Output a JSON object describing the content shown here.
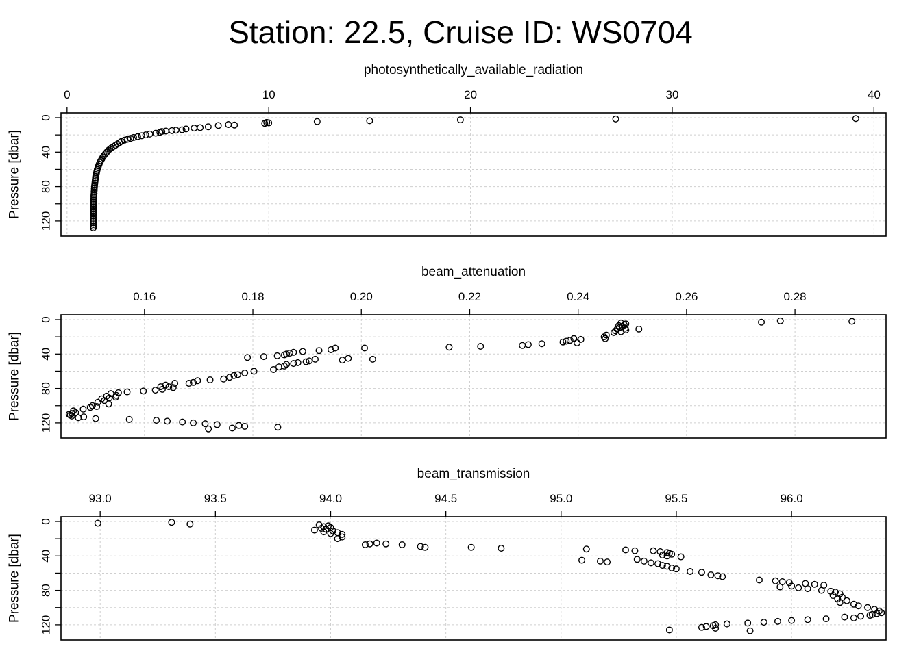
{
  "title": "Station: 22.5, Cruise ID: WS0704",
  "chart_data": [
    {
      "type": "scatter",
      "title": "",
      "xlabel": "photosynthetically_available_radiation",
      "ylabel": "Pressure [dbar]",
      "xlim": [
        -0.3,
        40.6
      ],
      "ylim": [
        0,
        132
      ],
      "y_reversed": true,
      "x_ticks": [
        0,
        10,
        20,
        30,
        40
      ],
      "x_tick_labels": [
        "0",
        "10",
        "20",
        "30",
        "40"
      ],
      "y_ticks": [
        0,
        40,
        80,
        120
      ],
      "y_tick_labels": [
        "0",
        "40",
        "80",
        "120"
      ],
      "grid": true,
      "points": [
        [
          39.1,
          1
        ],
        [
          27.2,
          1.5
        ],
        [
          19.5,
          2.5
        ],
        [
          15.0,
          3.5
        ],
        [
          12.4,
          4.5
        ],
        [
          10.0,
          6
        ],
        [
          9.9,
          5.5
        ],
        [
          9.8,
          6.5
        ],
        [
          8.3,
          8.5
        ],
        [
          8.0,
          8
        ],
        [
          7.5,
          9
        ],
        [
          7.0,
          10.5
        ],
        [
          6.6,
          11.5
        ],
        [
          6.3,
          12
        ],
        [
          5.9,
          13
        ],
        [
          5.7,
          14
        ],
        [
          5.4,
          14.5
        ],
        [
          5.2,
          15
        ],
        [
          4.9,
          15.5
        ],
        [
          4.7,
          16
        ],
        [
          4.6,
          17
        ],
        [
          4.4,
          18
        ],
        [
          4.1,
          19
        ],
        [
          3.9,
          20
        ],
        [
          3.7,
          21
        ],
        [
          3.5,
          22
        ],
        [
          3.3,
          23
        ],
        [
          3.15,
          24
        ],
        [
          3.0,
          25
        ],
        [
          2.85,
          26
        ],
        [
          2.7,
          27.5
        ],
        [
          2.6,
          29
        ],
        [
          2.5,
          30.5
        ],
        [
          2.4,
          32
        ],
        [
          2.3,
          33.5
        ],
        [
          2.2,
          35
        ],
        [
          2.12,
          36.5
        ],
        [
          2.04,
          38
        ],
        [
          1.97,
          40
        ],
        [
          1.9,
          42
        ],
        [
          1.83,
          44
        ],
        [
          1.77,
          46
        ],
        [
          1.72,
          48
        ],
        [
          1.67,
          50
        ],
        [
          1.63,
          52
        ],
        [
          1.59,
          54
        ],
        [
          1.56,
          56
        ],
        [
          1.53,
          58
        ],
        [
          1.5,
          60
        ],
        [
          1.48,
          62
        ],
        [
          1.46,
          64
        ],
        [
          1.44,
          66
        ],
        [
          1.42,
          68
        ],
        [
          1.41,
          70
        ],
        [
          1.4,
          72
        ],
        [
          1.39,
          74
        ],
        [
          1.38,
          76
        ],
        [
          1.37,
          78
        ],
        [
          1.36,
          80
        ],
        [
          1.35,
          82
        ],
        [
          1.35,
          84
        ],
        [
          1.34,
          86
        ],
        [
          1.34,
          88
        ],
        [
          1.33,
          90
        ],
        [
          1.33,
          92
        ],
        [
          1.33,
          94
        ],
        [
          1.32,
          96
        ],
        [
          1.32,
          98
        ],
        [
          1.32,
          100
        ],
        [
          1.32,
          102
        ],
        [
          1.31,
          104
        ],
        [
          1.31,
          106
        ],
        [
          1.31,
          108
        ],
        [
          1.31,
          110
        ],
        [
          1.31,
          112
        ],
        [
          1.3,
          114
        ],
        [
          1.3,
          116
        ],
        [
          1.3,
          118
        ],
        [
          1.3,
          120
        ],
        [
          1.3,
          122
        ],
        [
          1.3,
          124
        ],
        [
          1.3,
          126
        ],
        [
          1.3,
          128
        ]
      ]
    },
    {
      "type": "scatter",
      "title": "",
      "xlabel": "beam_attenuation",
      "ylabel": "Pressure [dbar]",
      "xlim": [
        0.1446,
        0.2968
      ],
      "ylim": [
        0,
        132
      ],
      "y_reversed": true,
      "x_ticks": [
        0.16,
        0.18,
        0.2,
        0.22,
        0.24,
        0.26,
        0.28
      ],
      "x_tick_labels": [
        "0.16",
        "0.18",
        "0.20",
        "0.22",
        "0.24",
        "0.26",
        "0.28"
      ],
      "y_ticks": [
        0,
        40,
        80,
        120
      ],
      "y_tick_labels": [
        "0",
        "40",
        "80",
        "120"
      ],
      "grid": true,
      "points": [
        [
          0.2905,
          2
        ],
        [
          0.2773,
          1.5
        ],
        [
          0.2738,
          3
        ],
        [
          0.2488,
          5
        ],
        [
          0.2485,
          6
        ],
        [
          0.2479,
          4
        ],
        [
          0.2475,
          7
        ],
        [
          0.2482,
          8
        ],
        [
          0.2477,
          9
        ],
        [
          0.2487,
          10
        ],
        [
          0.2472,
          11
        ],
        [
          0.2488,
          12
        ],
        [
          0.2469,
          13
        ],
        [
          0.2479,
          14
        ],
        [
          0.2466,
          15
        ],
        [
          0.2512,
          11
        ],
        [
          0.2452,
          18
        ],
        [
          0.2448,
          20
        ],
        [
          0.245,
          22
        ],
        [
          0.2405,
          23
        ],
        [
          0.2392,
          22
        ],
        [
          0.2385,
          24
        ],
        [
          0.2378,
          25
        ],
        [
          0.2398,
          27
        ],
        [
          0.2372,
          26
        ],
        [
          0.2333,
          28
        ],
        [
          0.2308,
          29
        ],
        [
          0.2297,
          30
        ],
        [
          0.222,
          31
        ],
        [
          0.2162,
          32
        ],
        [
          0.2006,
          33
        ],
        [
          0.1952,
          33
        ],
        [
          0.1944,
          35
        ],
        [
          0.1922,
          36
        ],
        [
          0.1892,
          37
        ],
        [
          0.1875,
          38
        ],
        [
          0.1868,
          39
        ],
        [
          0.1862,
          40
        ],
        [
          0.1858,
          41
        ],
        [
          0.1845,
          42
        ],
        [
          0.182,
          43
        ],
        [
          0.179,
          44
        ],
        [
          0.2021,
          46
        ],
        [
          0.1976,
          45
        ],
        [
          0.1965,
          47
        ],
        [
          0.1915,
          46
        ],
        [
          0.1904,
          48
        ],
        [
          0.1898,
          49
        ],
        [
          0.1883,
          50
        ],
        [
          0.1875,
          51
        ],
        [
          0.1862,
          52
        ],
        [
          0.1858,
          54
        ],
        [
          0.1848,
          55
        ],
        [
          0.1838,
          58
        ],
        [
          0.1802,
          60
        ],
        [
          0.1785,
          62
        ],
        [
          0.1772,
          64
        ],
        [
          0.1765,
          65
        ],
        [
          0.1757,
          67
        ],
        [
          0.1746,
          69
        ],
        [
          0.1721,
          70
        ],
        [
          0.1698,
          71
        ],
        [
          0.169,
          73
        ],
        [
          0.1682,
          74
        ],
        [
          0.1656,
          74
        ],
        [
          0.1639,
          76
        ],
        [
          0.163,
          78
        ],
        [
          0.1645,
          78
        ],
        [
          0.1653,
          79
        ],
        [
          0.1633,
          81
        ],
        [
          0.162,
          82
        ],
        [
          0.1598,
          83
        ],
        [
          0.1568,
          84
        ],
        [
          0.1552,
          85
        ],
        [
          0.1538,
          86
        ],
        [
          0.1548,
          88
        ],
        [
          0.153,
          89
        ],
        [
          0.1547,
          90
        ],
        [
          0.1535,
          91
        ],
        [
          0.1521,
          92
        ],
        [
          0.1526,
          94
        ],
        [
          0.1514,
          96
        ],
        [
          0.1534,
          98
        ],
        [
          0.1504,
          100
        ],
        [
          0.1512,
          101
        ],
        [
          0.15,
          102
        ],
        [
          0.1487,
          104
        ],
        [
          0.1469,
          106
        ],
        [
          0.1473,
          108
        ],
        [
          0.1466,
          109
        ],
        [
          0.1461,
          110
        ],
        [
          0.1463,
          111
        ],
        [
          0.1466,
          112
        ],
        [
          0.1488,
          113
        ],
        [
          0.1478,
          114
        ],
        [
          0.151,
          115
        ],
        [
          0.1572,
          116
        ],
        [
          0.1622,
          117
        ],
        [
          0.1642,
          118
        ],
        [
          0.167,
          119
        ],
        [
          0.169,
          120
        ],
        [
          0.1712,
          121
        ],
        [
          0.1734,
          122
        ],
        [
          0.1774,
          123
        ],
        [
          0.1785,
          124
        ],
        [
          0.1846,
          125
        ],
        [
          0.1762,
          126
        ],
        [
          0.1718,
          127
        ]
      ]
    },
    {
      "type": "scatter",
      "title": "",
      "xlabel": "beam_transmission",
      "ylabel": "Pressure [dbar]",
      "xlim": [
        92.83,
        96.41
      ],
      "ylim": [
        0,
        132
      ],
      "y_reversed": true,
      "x_ticks": [
        93.0,
        93.5,
        94.0,
        94.5,
        95.0,
        95.5,
        96.0
      ],
      "x_tick_labels": [
        "93.0",
        "93.5",
        "94.0",
        "94.5",
        "95.0",
        "95.5",
        "96.0"
      ],
      "y_ticks": [
        0,
        40,
        80,
        120
      ],
      "y_tick_labels": [
        "0",
        "40",
        "80",
        "120"
      ],
      "grid": true,
      "points": [
        [
          92.99,
          2
        ],
        [
          93.31,
          1
        ],
        [
          93.39,
          3
        ],
        [
          93.93,
          10
        ],
        [
          93.95,
          4
        ],
        [
          93.97,
          6
        ],
        [
          93.99,
          5
        ],
        [
          94.0,
          7
        ],
        [
          93.96,
          8
        ],
        [
          93.98,
          9
        ],
        [
          94.01,
          11
        ],
        [
          93.97,
          12
        ],
        [
          94.03,
          13
        ],
        [
          94.0,
          14
        ],
        [
          94.05,
          15
        ],
        [
          94.05,
          18
        ],
        [
          94.03,
          20
        ],
        [
          94.17,
          26
        ],
        [
          94.15,
          27
        ],
        [
          94.2,
          25
        ],
        [
          94.24,
          26
        ],
        [
          94.31,
          27
        ],
        [
          94.39,
          29
        ],
        [
          94.41,
          30
        ],
        [
          94.61,
          30
        ],
        [
          94.74,
          31
        ],
        [
          95.11,
          32
        ],
        [
          95.09,
          45
        ],
        [
          95.17,
          46
        ],
        [
          95.2,
          47
        ],
        [
          95.28,
          33
        ],
        [
          95.32,
          34
        ],
        [
          95.4,
          34
        ],
        [
          95.43,
          35
        ],
        [
          95.46,
          36
        ],
        [
          95.47,
          37
        ],
        [
          95.48,
          38
        ],
        [
          95.44,
          39
        ],
        [
          95.46,
          40
        ],
        [
          95.52,
          41
        ],
        [
          95.33,
          44
        ],
        [
          95.36,
          46
        ],
        [
          95.39,
          48
        ],
        [
          95.42,
          49
        ],
        [
          95.44,
          51
        ],
        [
          95.46,
          52
        ],
        [
          95.48,
          54
        ],
        [
          95.5,
          55
        ],
        [
          95.56,
          58
        ],
        [
          95.61,
          59
        ],
        [
          95.65,
          62
        ],
        [
          95.68,
          63
        ],
        [
          95.7,
          64
        ],
        [
          95.86,
          68
        ],
        [
          95.93,
          69
        ],
        [
          95.96,
          70
        ],
        [
          95.99,
          71
        ],
        [
          96.06,
          72
        ],
        [
          96.1,
          73
        ],
        [
          96.14,
          74
        ],
        [
          96.0,
          75
        ],
        [
          95.95,
          76
        ],
        [
          96.03,
          77
        ],
        [
          96.07,
          78
        ],
        [
          96.13,
          80
        ],
        [
          96.17,
          81
        ],
        [
          96.19,
          82
        ],
        [
          96.21,
          84
        ],
        [
          96.18,
          86
        ],
        [
          96.22,
          88
        ],
        [
          96.2,
          90
        ],
        [
          96.24,
          92
        ],
        [
          96.21,
          94
        ],
        [
          96.27,
          96
        ],
        [
          96.29,
          98
        ],
        [
          96.33,
          100
        ],
        [
          96.36,
          102
        ],
        [
          96.38,
          104
        ],
        [
          96.39,
          106
        ],
        [
          96.37,
          107
        ],
        [
          96.35,
          108
        ],
        [
          96.34,
          109
        ],
        [
          96.3,
          110
        ],
        [
          96.23,
          111
        ],
        [
          96.27,
          112
        ],
        [
          96.15,
          113
        ],
        [
          96.07,
          114
        ],
        [
          96.0,
          115
        ],
        [
          95.94,
          116
        ],
        [
          95.88,
          117
        ],
        [
          95.81,
          118
        ],
        [
          95.72,
          119
        ],
        [
          95.67,
          120
        ],
        [
          95.66,
          121
        ],
        [
          95.63,
          122
        ],
        [
          95.61,
          123
        ],
        [
          95.67,
          124
        ],
        [
          95.47,
          126
        ],
        [
          95.82,
          127
        ]
      ]
    }
  ]
}
